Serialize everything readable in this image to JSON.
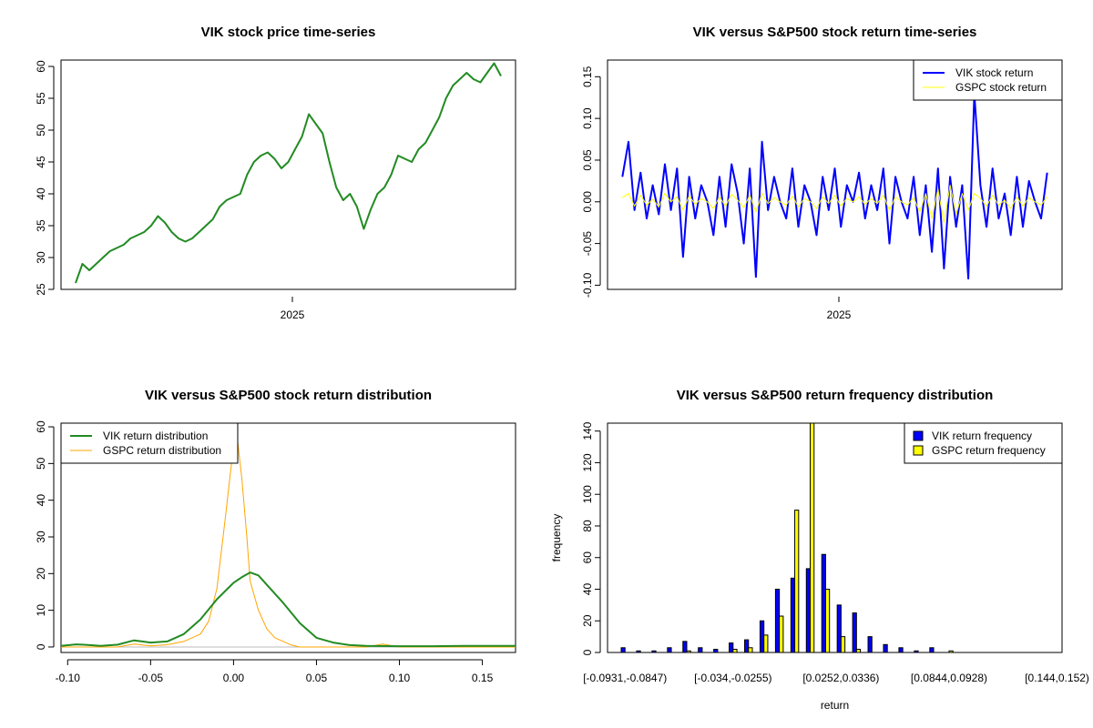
{
  "chart_data": [
    {
      "type": "line",
      "title": "VIK stock price time-series",
      "xlabel": "",
      "ylabel": "",
      "x_tick_labels": [
        "2025"
      ],
      "y_ticks": [
        25,
        30,
        35,
        40,
        45,
        50,
        55,
        60
      ],
      "ylim": [
        25,
        61
      ],
      "grid": false,
      "legend": "none",
      "series": [
        {
          "color": "#228B22",
          "values": [
            26,
            29,
            28,
            29,
            30,
            31,
            31.5,
            32,
            33,
            33.5,
            34,
            35,
            36.5,
            35.5,
            34,
            33,
            32.5,
            33,
            34,
            35,
            36,
            38,
            39,
            39.5,
            40,
            43,
            45,
            46,
            46.5,
            45.5,
            44,
            45,
            47,
            49,
            52.5,
            51,
            49.5,
            45,
            41,
            39,
            40,
            38,
            34.5,
            37.5,
            40,
            41,
            43,
            46,
            45.5,
            45,
            47,
            48,
            50,
            52,
            55,
            57,
            58,
            59,
            58,
            57.5,
            59,
            60.5,
            58.5
          ]
        }
      ]
    },
    {
      "type": "line",
      "title": "VIK versus S&P500 stock return time-series",
      "xlabel": "",
      "ylabel": "",
      "x_tick_labels": [
        "2025"
      ],
      "y_ticks": [
        -0.1,
        -0.05,
        0.0,
        0.05,
        0.1,
        0.15
      ],
      "y_tick_labels": [
        "-0.10",
        "-0.05",
        "0.00",
        "0.05",
        "0.10",
        "0.15"
      ],
      "ylim": [
        -0.105,
        0.17
      ],
      "grid": false,
      "legend": "top-right",
      "series": [
        {
          "name": "VIK stock return",
          "color": "#0000FF",
          "values": [
            0.03,
            0.072,
            -0.01,
            0.035,
            -0.02,
            0.02,
            -0.015,
            0.045,
            -0.01,
            0.04,
            -0.066,
            0.03,
            -0.02,
            0.02,
            0.0,
            -0.04,
            0.03,
            -0.03,
            0.045,
            0.01,
            -0.05,
            0.04,
            -0.09,
            0.072,
            -0.01,
            0.03,
            0.0,
            -0.02,
            0.04,
            -0.03,
            0.02,
            0.0,
            -0.04,
            0.03,
            -0.01,
            0.04,
            -0.03,
            0.02,
            0.0,
            0.035,
            -0.02,
            0.02,
            -0.01,
            0.04,
            -0.05,
            0.03,
            0.0,
            -0.02,
            0.03,
            -0.04,
            0.02,
            -0.06,
            0.04,
            -0.08,
            0.03,
            -0.03,
            0.02,
            -0.092,
            0.13,
            0.02,
            -0.03,
            0.04,
            -0.02,
            0.01,
            -0.04,
            0.03,
            -0.03,
            0.025,
            0.0,
            -0.02,
            0.035
          ]
        },
        {
          "name": "GSPC stock return",
          "color": "#FFFF00",
          "values": [
            0.005,
            0.01,
            -0.005,
            0.008,
            -0.004,
            0.003,
            -0.006,
            0.01,
            0.0,
            0.006,
            -0.01,
            0.007,
            -0.003,
            0.004,
            0.0,
            -0.008,
            0.006,
            -0.005,
            0.009,
            0.002,
            -0.007,
            0.008,
            -0.012,
            0.01,
            -0.002,
            0.005,
            0.0,
            -0.004,
            0.007,
            -0.006,
            0.004,
            0.0,
            -0.008,
            0.006,
            -0.002,
            0.008,
            -0.005,
            0.004,
            0.0,
            0.006,
            -0.003,
            0.004,
            -0.002,
            0.008,
            -0.01,
            0.006,
            0.0,
            -0.004,
            0.005,
            -0.012,
            0.01,
            -0.02,
            0.015,
            -0.025,
            0.02,
            -0.015,
            0.01,
            -0.01,
            0.01,
            0.004,
            -0.005,
            0.008,
            -0.004,
            0.002,
            -0.008,
            0.006,
            -0.005,
            0.005,
            0.0,
            -0.004,
            0.006
          ]
        }
      ]
    },
    {
      "type": "line",
      "title": "VIK versus S&P500 stock return distribution",
      "xlabel": "",
      "ylabel": "",
      "x_ticks": [
        -0.1,
        -0.05,
        0.0,
        0.05,
        0.1,
        0.15
      ],
      "x_tick_labels": [
        "-0.10",
        "-0.05",
        "0.00",
        "0.05",
        "0.10",
        "0.15"
      ],
      "y_ticks": [
        0,
        10,
        20,
        30,
        40,
        50,
        60
      ],
      "xlim": [
        -0.104,
        0.17
      ],
      "ylim": [
        -1.5,
        61
      ],
      "grid": false,
      "legend": "top-left",
      "series": [
        {
          "name": "VIK return distribution",
          "color": "#228B22",
          "x": [
            -0.104,
            -0.095,
            -0.09,
            -0.08,
            -0.07,
            -0.06,
            -0.055,
            -0.05,
            -0.04,
            -0.03,
            -0.02,
            -0.01,
            0.0,
            0.005,
            0.01,
            0.015,
            0.02,
            0.03,
            0.04,
            0.05,
            0.06,
            0.07,
            0.08,
            0.1,
            0.12,
            0.14,
            0.17
          ],
          "values": [
            0.3,
            0.7,
            0.6,
            0.3,
            0.6,
            1.8,
            1.5,
            1.2,
            1.5,
            3.5,
            7.5,
            13,
            17.5,
            19,
            20.3,
            19.5,
            17,
            12,
            6.5,
            2.5,
            1.2,
            0.5,
            0.3,
            0.2,
            0.2,
            0.3,
            0.3
          ]
        },
        {
          "name": "GSPC return distribution",
          "color": "#FFA500",
          "x": [
            -0.104,
            -0.07,
            -0.06,
            -0.05,
            -0.04,
            -0.03,
            -0.02,
            -0.015,
            -0.01,
            -0.005,
            0.0,
            0.002,
            0.005,
            0.008,
            0.01,
            0.015,
            0.02,
            0.025,
            0.03,
            0.035,
            0.04,
            0.05,
            0.08,
            0.09,
            0.1,
            0.17
          ],
          "values": [
            0,
            0,
            0.8,
            0.3,
            0.6,
            1.5,
            3.5,
            7,
            16,
            35,
            55,
            58,
            46,
            30,
            18,
            10,
            5,
            2.5,
            1.5,
            0.5,
            0,
            0,
            0,
            0.8,
            0,
            0
          ]
        }
      ]
    },
    {
      "type": "bar",
      "title": "VIK versus S&P500 return frequency distribution",
      "xlabel": "return",
      "ylabel": "frequency",
      "x_tick_labels": [
        "[-0.0931,-0.0847)",
        "[-0.034,-0.0255)",
        "[0.0252,0.0336)",
        "[0.0844,0.0928)",
        "[0.144,0.152)"
      ],
      "x_tick_label_positions": [
        0,
        7,
        14,
        21,
        28
      ],
      "y_ticks": [
        0,
        20,
        40,
        60,
        80,
        100,
        120,
        140
      ],
      "ylim": [
        0,
        145
      ],
      "grid": false,
      "legend": "top-right",
      "series": [
        {
          "name": "VIK return frequency",
          "color": "#0000FF",
          "values": [
            3,
            1,
            1,
            3,
            7,
            3,
            2,
            6,
            8,
            20,
            40,
            47,
            53,
            62,
            30,
            25,
            10,
            5,
            3,
            1,
            3,
            0,
            0,
            0,
            0,
            0,
            0,
            0,
            0
          ]
        },
        {
          "name": "GSPC return frequency",
          "color": "#FFFF00",
          "values": [
            0,
            0,
            0,
            0,
            1,
            0,
            0,
            2,
            3,
            11,
            23,
            90,
            145,
            40,
            10,
            2,
            0,
            0,
            0,
            0,
            0,
            1,
            0,
            0,
            0,
            0,
            0,
            0,
            0
          ]
        }
      ]
    }
  ]
}
